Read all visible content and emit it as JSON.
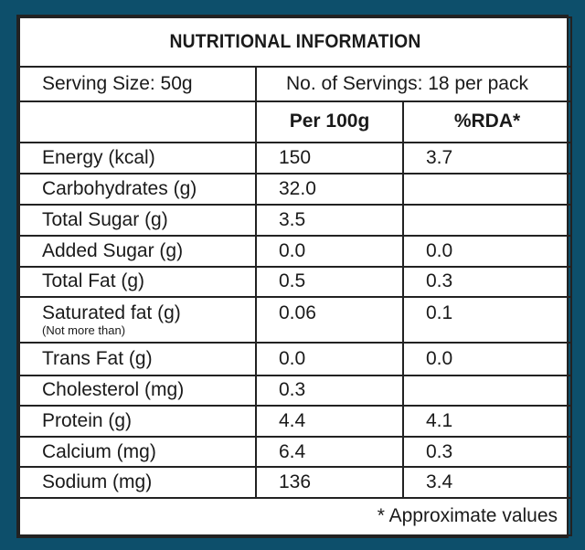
{
  "title": "NUTRITIONAL INFORMATION",
  "serving_size": "Serving Size: 50g",
  "servings": "No. of Servings: 18 per pack",
  "headers": {
    "per100": "Per 100g",
    "rda": "%RDA*"
  },
  "rows": [
    {
      "label": "Energy (kcal)",
      "per100": "150",
      "rda": "3.7"
    },
    {
      "label": "Carbohydrates (g)",
      "per100": "32.0",
      "rda": ""
    },
    {
      "label": "Total Sugar (g)",
      "per100": "3.5",
      "rda": ""
    },
    {
      "label": "Added Sugar (g)",
      "per100": "0.0",
      "rda": "0.0"
    },
    {
      "label": "Total Fat (g)",
      "per100": "0.5",
      "rda": "0.3"
    },
    {
      "label": "Saturated fat (g)",
      "note": "(Not more than)",
      "per100": "0.06",
      "rda": "0.1"
    },
    {
      "label": "Trans Fat (g)",
      "per100": "0.0",
      "rda": "0.0"
    },
    {
      "label": "Cholesterol (mg)",
      "per100": "0.3",
      "rda": ""
    },
    {
      "label": "Protein (g)",
      "per100": "4.4",
      "rda": "4.1"
    },
    {
      "label": "Calcium (mg)",
      "per100": "6.4",
      "rda": "0.3"
    },
    {
      "label": "Sodium (mg)",
      "per100": "136",
      "rda": "3.4"
    }
  ],
  "footer": "* Approximate values",
  "colors": {
    "frame": "#0d4f6b",
    "panel": "#ffffff",
    "rule": "#222222"
  }
}
